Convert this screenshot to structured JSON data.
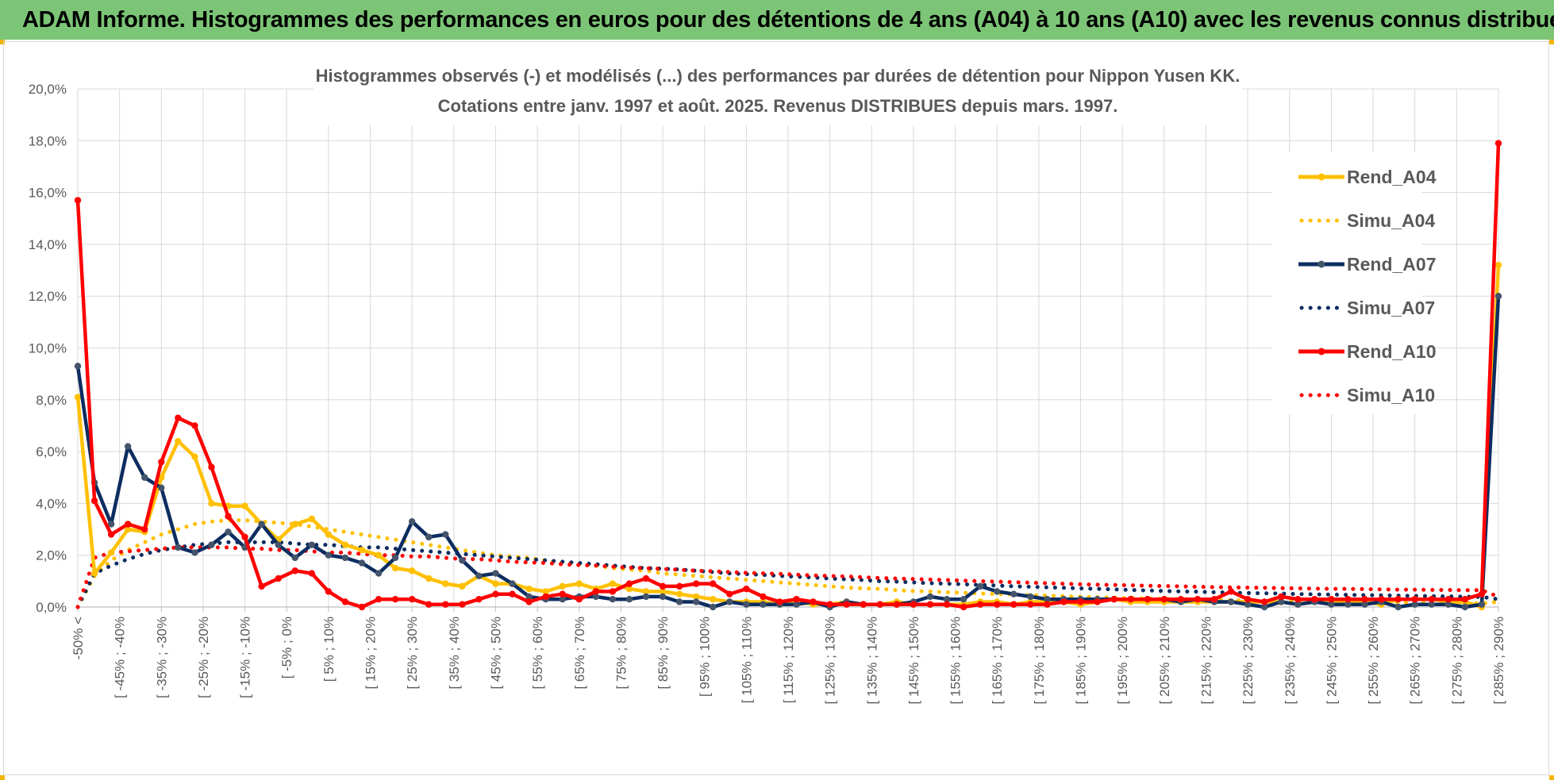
{
  "header": {
    "title": "ADAM Informe. Histogrammes des performances en euros pour des détentions de 4 ans (A04) à 10 ans (A10) avec les revenus connus distribués"
  },
  "chart_data": {
    "type": "line",
    "title_lines": [
      "Histogrammes observés (-) et modélisés (...) des performances par durées de détention pour Nippon Yusen KK.",
      "Cotations entre janv. 1997 et août. 2025. Revenus DISTRIBUES depuis mars. 1997."
    ],
    "ylim": [
      0,
      20
    ],
    "y_ticks": [
      "0,0%",
      "2,0%",
      "4,0%",
      "6,0%",
      "8,0%",
      "10,0%",
      "12,0%",
      "14,0%",
      "16,0%",
      "18,0%",
      "20,0%"
    ],
    "x_labels": [
      "-50% <",
      "[ -45% ; -40%",
      "[ -35% ; -30%",
      "[ -25% ; -20%",
      "[ -15% ; -10%",
      "[ -5% ; 0%",
      "[ 5% ; 10%",
      "[ 15% ; 20%",
      "[ 25% ; 30%",
      "[ 35% ; 40%",
      "[ 45% ; 50%",
      "[ 55% ; 60%",
      "[ 65% ; 70%",
      "[ 75% ; 80%",
      "[ 85% ; 90%",
      "[ 95% ; 100%",
      "[ 105% ; 110%",
      "[ 115% ; 120%",
      "[ 125% ; 130%",
      "[ 135% ; 140%",
      "[ 145% ; 150%",
      "[ 155% ; 160%",
      "[ 165% ; 170%",
      "[ 175% ; 180%",
      "[ 185% ; 190%",
      "[ 195% ; 200%",
      "[ 205% ; 210%",
      "[ 215% ; 220%",
      "[ 225% ; 230%",
      "[ 235% ; 240%",
      "[ 245% ; 250%",
      "[ 255% ; 260%",
      "[ 265% ; 270%",
      "[ 275% ; 280%",
      "[ 285% ; 290%"
    ],
    "grid": true,
    "legend_position": "top-right",
    "series": [
      {
        "name": "Rend_A04",
        "style": "solid",
        "color": "#ffc000",
        "values": [
          8.1,
          1.3,
          2.1,
          3.0,
          2.9,
          5.0,
          6.4,
          5.8,
          4.0,
          3.9,
          3.9,
          3.2,
          2.6,
          3.2,
          3.4,
          2.8,
          2.4,
          2.2,
          2.0,
          1.5,
          1.4,
          1.1,
          0.9,
          0.8,
          1.2,
          0.9,
          0.9,
          0.7,
          0.6,
          0.8,
          0.9,
          0.7,
          0.9,
          0.7,
          0.6,
          0.6,
          0.5,
          0.4,
          0.3,
          0.2,
          0.2,
          0.2,
          0.1,
          0.2,
          0.1,
          0.1,
          0.2,
          0.1,
          0.1,
          0.2,
          0.1,
          0.1,
          0.1,
          0.1,
          0.2,
          0.2,
          0.1,
          0.2,
          0.2,
          0.2,
          0.1,
          0.2,
          0.3,
          0.2,
          0.2,
          0.2,
          0.2,
          0.2,
          0.2,
          0.2,
          0.2,
          0.2,
          0.2,
          0.1,
          0.2,
          0.2,
          0.2,
          0.2,
          0.1,
          0.3,
          0.3,
          0.3,
          0.2,
          0.2,
          0.0,
          13.2
        ]
      },
      {
        "name": "Simu_A04",
        "style": "dotted",
        "color": "#ffc000",
        "values": [
          0.0,
          1.2,
          1.8,
          2.2,
          2.5,
          2.8,
          3.0,
          3.2,
          3.3,
          3.35,
          3.35,
          3.3,
          3.25,
          3.2,
          3.1,
          3.0,
          2.9,
          2.8,
          2.7,
          2.6,
          2.5,
          2.4,
          2.3,
          2.2,
          2.1,
          2.0,
          1.95,
          1.9,
          1.8,
          1.7,
          1.65,
          1.6,
          1.5,
          1.45,
          1.4,
          1.3,
          1.25,
          1.2,
          1.15,
          1.1,
          1.05,
          1.0,
          0.95,
          0.9,
          0.85,
          0.8,
          0.75,
          0.72,
          0.7,
          0.65,
          0.62,
          0.6,
          0.57,
          0.55,
          0.52,
          0.5,
          0.48,
          0.46,
          0.44,
          0.42,
          0.4,
          0.38,
          0.36,
          0.35,
          0.33,
          0.32,
          0.3,
          0.29,
          0.28,
          0.26,
          0.25,
          0.24,
          0.23,
          0.22,
          0.21,
          0.2,
          0.2,
          0.19,
          0.18,
          0.17,
          0.17,
          0.16,
          0.15,
          0.15,
          0.14,
          0.2
        ]
      },
      {
        "name": "Rend_A07",
        "style": "solid",
        "color": "#0d2d61",
        "values": [
          9.3,
          4.8,
          3.2,
          6.2,
          5.0,
          4.6,
          2.3,
          2.1,
          2.4,
          2.9,
          2.3,
          3.2,
          2.4,
          1.9,
          2.4,
          2.0,
          1.9,
          1.7,
          1.3,
          1.9,
          3.3,
          2.7,
          2.8,
          1.8,
          1.2,
          1.3,
          0.9,
          0.4,
          0.3,
          0.3,
          0.4,
          0.4,
          0.3,
          0.3,
          0.4,
          0.4,
          0.2,
          0.2,
          0.0,
          0.2,
          0.1,
          0.1,
          0.1,
          0.1,
          0.2,
          0.0,
          0.2,
          0.1,
          0.1,
          0.1,
          0.2,
          0.4,
          0.3,
          0.3,
          0.8,
          0.6,
          0.5,
          0.4,
          0.3,
          0.3,
          0.3,
          0.3,
          0.3,
          0.3,
          0.3,
          0.3,
          0.2,
          0.3,
          0.2,
          0.2,
          0.1,
          0.0,
          0.2,
          0.1,
          0.2,
          0.1,
          0.1,
          0.1,
          0.2,
          0.0,
          0.1,
          0.1,
          0.1,
          0.0,
          0.1,
          12.0
        ]
      },
      {
        "name": "Simu_A07",
        "style": "dotted",
        "color": "#0d2d61",
        "values": [
          0.0,
          1.3,
          1.6,
          1.85,
          2.05,
          2.2,
          2.3,
          2.4,
          2.45,
          2.5,
          2.5,
          2.5,
          2.5,
          2.45,
          2.4,
          2.4,
          2.35,
          2.3,
          2.3,
          2.25,
          2.2,
          2.15,
          2.1,
          2.05,
          2.0,
          1.95,
          1.9,
          1.85,
          1.8,
          1.75,
          1.7,
          1.65,
          1.6,
          1.55,
          1.5,
          1.48,
          1.45,
          1.4,
          1.35,
          1.3,
          1.27,
          1.24,
          1.2,
          1.17,
          1.14,
          1.1,
          1.07,
          1.04,
          1.0,
          0.98,
          0.95,
          0.92,
          0.9,
          0.88,
          0.85,
          0.83,
          0.8,
          0.78,
          0.76,
          0.74,
          0.72,
          0.7,
          0.68,
          0.66,
          0.64,
          0.62,
          0.6,
          0.59,
          0.57,
          0.56,
          0.54,
          0.53,
          0.52,
          0.5,
          0.49,
          0.48,
          0.47,
          0.46,
          0.45,
          0.44,
          0.43,
          0.42,
          0.41,
          0.4,
          0.39,
          0.3
        ]
      },
      {
        "name": "Rend_A10",
        "style": "solid",
        "color": "#ff0000",
        "values": [
          15.7,
          4.1,
          2.8,
          3.2,
          3.0,
          5.6,
          7.3,
          7.0,
          5.4,
          3.5,
          2.7,
          0.8,
          1.1,
          1.4,
          1.3,
          0.6,
          0.2,
          0.0,
          0.3,
          0.3,
          0.3,
          0.1,
          0.1,
          0.1,
          0.3,
          0.5,
          0.5,
          0.2,
          0.4,
          0.5,
          0.3,
          0.6,
          0.6,
          0.9,
          1.1,
          0.8,
          0.8,
          0.9,
          0.9,
          0.5,
          0.7,
          0.4,
          0.2,
          0.3,
          0.2,
          0.1,
          0.1,
          0.1,
          0.1,
          0.1,
          0.1,
          0.1,
          0.1,
          0.0,
          0.1,
          0.1,
          0.1,
          0.1,
          0.1,
          0.2,
          0.2,
          0.2,
          0.3,
          0.3,
          0.3,
          0.3,
          0.3,
          0.3,
          0.3,
          0.6,
          0.3,
          0.2,
          0.4,
          0.3,
          0.3,
          0.3,
          0.3,
          0.3,
          0.3,
          0.3,
          0.3,
          0.3,
          0.3,
          0.3,
          0.5,
          17.9
        ]
      },
      {
        "name": "Simu_A10",
        "style": "dotted",
        "color": "#ff0000",
        "values": [
          0.0,
          1.9,
          2.1,
          2.15,
          2.2,
          2.25,
          2.3,
          2.3,
          2.3,
          2.3,
          2.25,
          2.25,
          2.2,
          2.2,
          2.15,
          2.1,
          2.1,
          2.05,
          2.0,
          2.0,
          1.95,
          1.95,
          1.9,
          1.85,
          1.85,
          1.8,
          1.75,
          1.72,
          1.7,
          1.65,
          1.62,
          1.6,
          1.56,
          1.52,
          1.5,
          1.47,
          1.44,
          1.4,
          1.38,
          1.35,
          1.32,
          1.3,
          1.28,
          1.25,
          1.22,
          1.2,
          1.18,
          1.15,
          1.12,
          1.1,
          1.08,
          1.06,
          1.04,
          1.02,
          1.0,
          0.98,
          0.96,
          0.94,
          0.92,
          0.9,
          0.88,
          0.86,
          0.85,
          0.84,
          0.82,
          0.81,
          0.8,
          0.78,
          0.77,
          0.76,
          0.75,
          0.74,
          0.73,
          0.72,
          0.71,
          0.7,
          0.7,
          0.69,
          0.68,
          0.67,
          0.67,
          0.66,
          0.66,
          0.65,
          0.65,
          0.4
        ]
      }
    ]
  }
}
